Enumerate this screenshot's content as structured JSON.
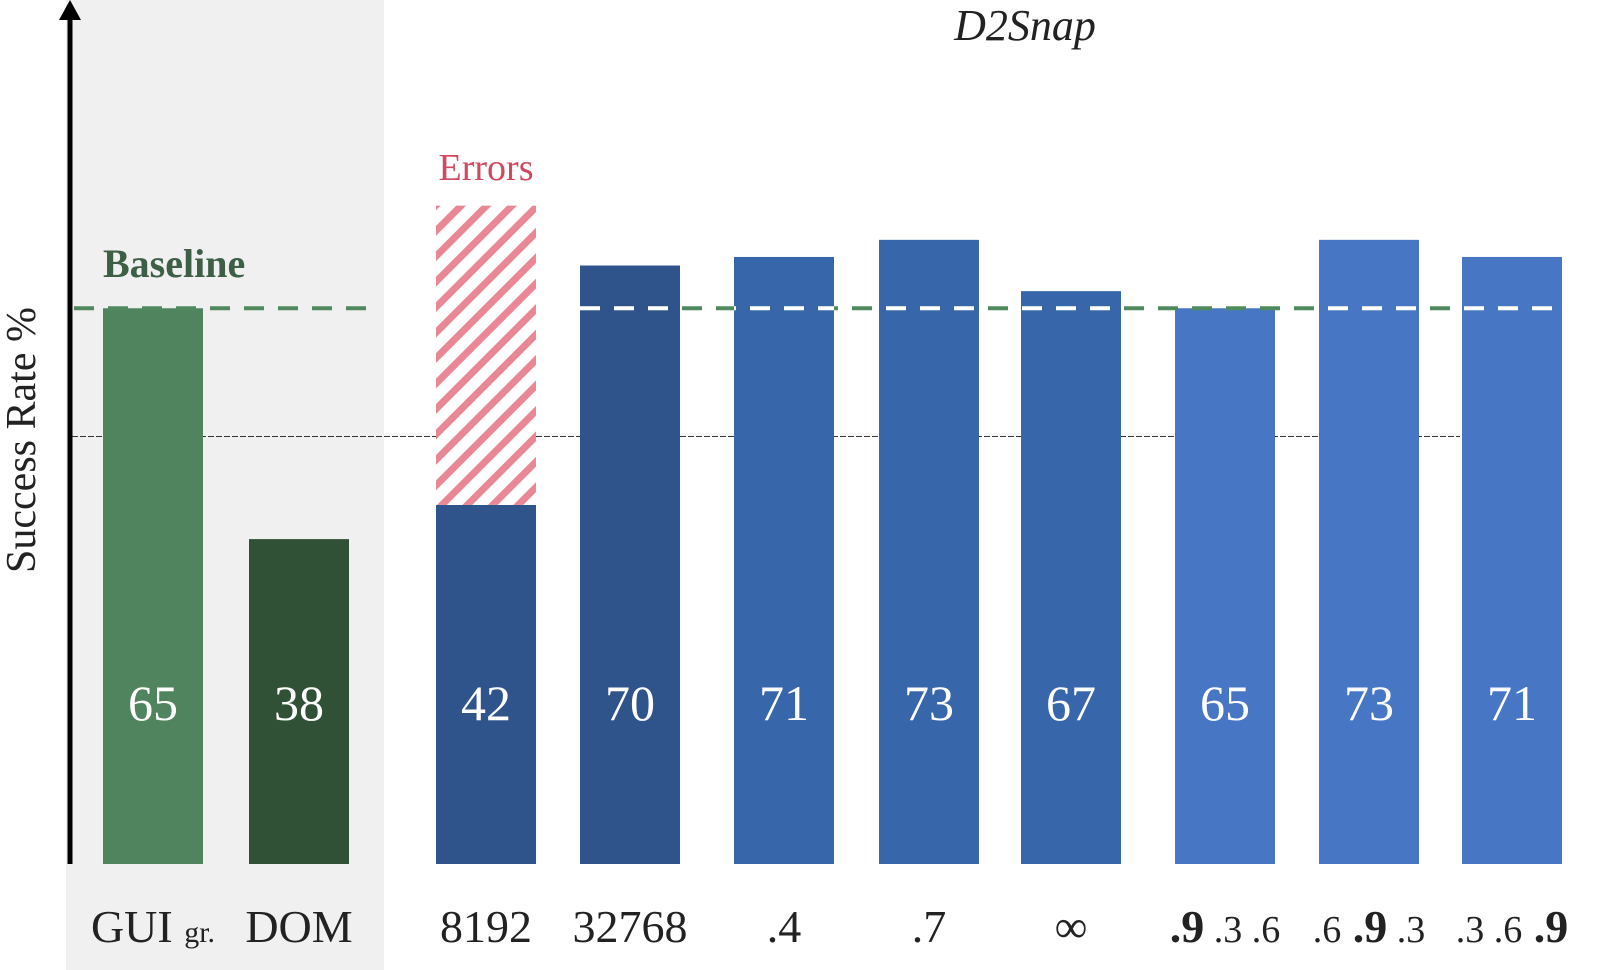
{
  "chart_data": {
    "type": "bar",
    "title": "D2Snap",
    "ylabel": "Success Rate %",
    "ylim": [
      0,
      100
    ],
    "baseline": {
      "label": "Baseline",
      "value": 65
    },
    "reference_line": 50,
    "errors_label": "Errors",
    "colors": {
      "baseline_line": "#4e8a5e",
      "errors": "#e98894",
      "errors_text": "#d0495e",
      "baseline_panel": "#f0f0f0"
    },
    "groups": [
      {
        "name": "baseline",
        "bars": [
          0,
          1
        ]
      },
      {
        "name": "D2Snap",
        "bars": [
          2,
          3,
          4,
          5,
          6,
          7,
          8,
          9
        ]
      }
    ],
    "bars": [
      {
        "label": "GUI gr.",
        "value": 65,
        "color": "#4f845e"
      },
      {
        "label": "DOM",
        "value": 38,
        "color": "#315136"
      },
      {
        "label": "8192",
        "value": 42,
        "errors": 35,
        "color": "#2f548c"
      },
      {
        "label": "32768",
        "value": 70,
        "color": "#2f548c"
      },
      {
        "label": ".4",
        "value": 71,
        "color": "#3766ab"
      },
      {
        "label": ".7",
        "value": 73,
        "color": "#3766ab"
      },
      {
        "label": "∞",
        "value": 67,
        "color": "#3766ab"
      },
      {
        "label": ".9 .3 .6",
        "value": 65,
        "color": "#4777c4"
      },
      {
        "label": ".6 .9 .3",
        "value": 73,
        "color": "#4777c4"
      },
      {
        "label": ".3 .6 .9",
        "value": 71,
        "color": "#4777c4"
      }
    ]
  }
}
